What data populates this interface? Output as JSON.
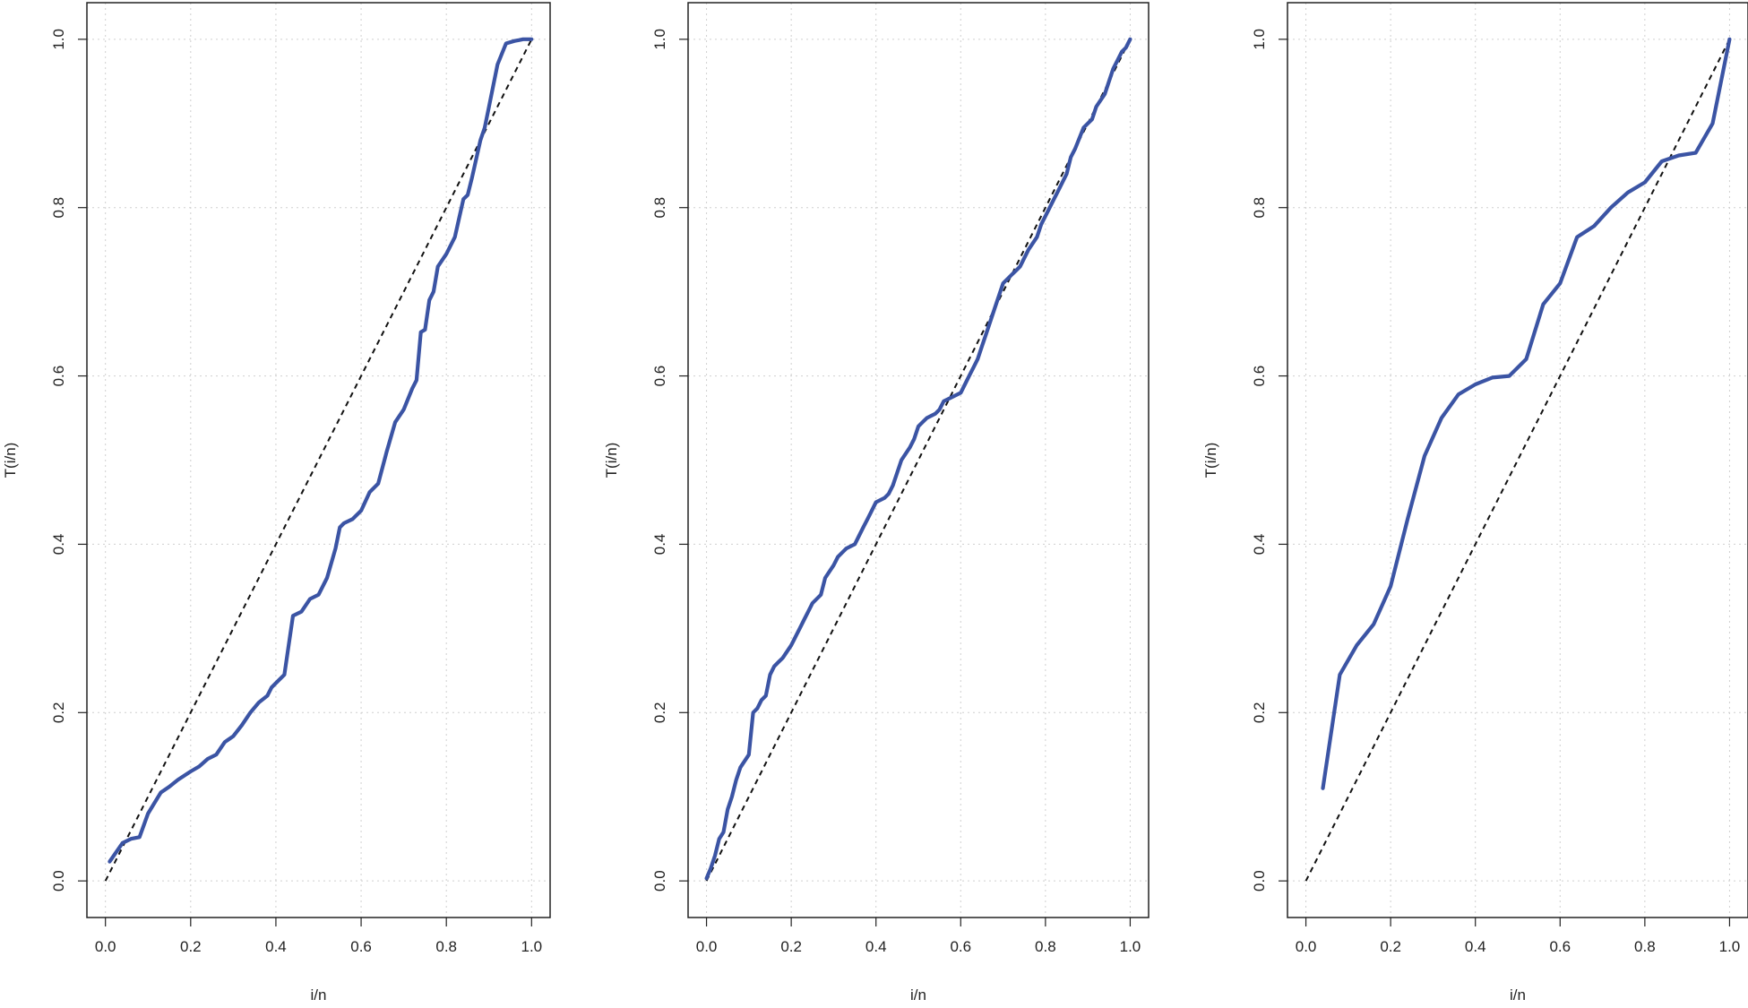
{
  "colors": {
    "series": "#3b54a4",
    "reference": "#111111"
  },
  "chart_data": [
    {
      "type": "line",
      "xlabel": "i/n",
      "ylabel": "T(i/n)",
      "xlim": [
        0,
        1
      ],
      "ylim": [
        0,
        1
      ],
      "grid": true,
      "xticks": [
        0.0,
        0.2,
        0.4,
        0.6,
        0.8,
        1.0
      ],
      "yticks": [
        0.0,
        0.2,
        0.4,
        0.6,
        0.8,
        1.0
      ],
      "xtick_labels": [
        "0.0",
        "0.2",
        "0.4",
        "0.6",
        "0.8",
        "1.0"
      ],
      "ytick_labels": [
        "0.0",
        "0.2",
        "0.4",
        "0.6",
        "0.8",
        "1.0"
      ],
      "reference_line": [
        [
          0,
          0
        ],
        [
          1,
          1
        ]
      ],
      "series": [
        {
          "x": [
            0.01,
            0.04,
            0.06,
            0.08,
            0.1,
            0.13,
            0.15,
            0.17,
            0.2,
            0.22,
            0.24,
            0.26,
            0.28,
            0.3,
            0.32,
            0.34,
            0.36,
            0.38,
            0.39,
            0.4,
            0.42,
            0.44,
            0.46,
            0.48,
            0.5,
            0.52,
            0.54,
            0.55,
            0.56,
            0.58,
            0.6,
            0.62,
            0.64,
            0.66,
            0.68,
            0.7,
            0.72,
            0.73,
            0.74,
            0.75,
            0.76,
            0.77,
            0.78,
            0.8,
            0.82,
            0.84,
            0.85,
            0.86,
            0.88,
            0.89,
            0.9,
            0.92,
            0.94,
            0.96,
            0.97,
            0.98,
            1.0
          ],
          "y": [
            0.023,
            0.045,
            0.05,
            0.052,
            0.08,
            0.105,
            0.112,
            0.12,
            0.13,
            0.136,
            0.145,
            0.15,
            0.165,
            0.172,
            0.185,
            0.2,
            0.212,
            0.22,
            0.23,
            0.235,
            0.245,
            0.315,
            0.32,
            0.335,
            0.34,
            0.36,
            0.395,
            0.42,
            0.425,
            0.43,
            0.44,
            0.462,
            0.472,
            0.51,
            0.545,
            0.56,
            0.585,
            0.595,
            0.652,
            0.655,
            0.69,
            0.7,
            0.73,
            0.745,
            0.765,
            0.81,
            0.815,
            0.835,
            0.88,
            0.895,
            0.92,
            0.97,
            0.995,
            0.998,
            0.999,
            1.0,
            1.0
          ]
        }
      ]
    },
    {
      "type": "line",
      "xlabel": "i/n",
      "ylabel": "T(i/n)",
      "xlim": [
        0,
        1
      ],
      "ylim": [
        0,
        1
      ],
      "grid": true,
      "xticks": [
        0.0,
        0.2,
        0.4,
        0.6,
        0.8,
        1.0
      ],
      "yticks": [
        0.0,
        0.2,
        0.4,
        0.6,
        0.8,
        1.0
      ],
      "xtick_labels": [
        "0.0",
        "0.2",
        "0.4",
        "0.6",
        "0.8",
        "1.0"
      ],
      "ytick_labels": [
        "0.0",
        "0.2",
        "0.4",
        "0.6",
        "0.8",
        "1.0"
      ],
      "reference_line": [
        [
          0,
          0
        ],
        [
          1,
          1
        ]
      ],
      "series": [
        {
          "x": [
            0.0,
            0.01,
            0.02,
            0.03,
            0.04,
            0.05,
            0.06,
            0.07,
            0.08,
            0.1,
            0.11,
            0.12,
            0.13,
            0.14,
            0.15,
            0.16,
            0.17,
            0.18,
            0.2,
            0.22,
            0.23,
            0.24,
            0.25,
            0.27,
            0.28,
            0.3,
            0.31,
            0.32,
            0.33,
            0.35,
            0.36,
            0.37,
            0.38,
            0.39,
            0.4,
            0.42,
            0.43,
            0.44,
            0.46,
            0.48,
            0.49,
            0.5,
            0.51,
            0.52,
            0.54,
            0.55,
            0.56,
            0.58,
            0.6,
            0.61,
            0.62,
            0.63,
            0.64,
            0.65,
            0.66,
            0.68,
            0.7,
            0.72,
            0.73,
            0.74,
            0.76,
            0.78,
            0.79,
            0.8,
            0.81,
            0.82,
            0.83,
            0.85,
            0.86,
            0.87,
            0.89,
            0.9,
            0.91,
            0.92,
            0.94,
            0.95,
            0.96,
            0.97,
            0.98,
            0.99,
            1.0
          ],
          "y": [
            0.003,
            0.015,
            0.03,
            0.05,
            0.058,
            0.085,
            0.1,
            0.12,
            0.135,
            0.15,
            0.2,
            0.205,
            0.215,
            0.22,
            0.245,
            0.255,
            0.26,
            0.265,
            0.28,
            0.3,
            0.31,
            0.32,
            0.33,
            0.34,
            0.36,
            0.375,
            0.385,
            0.39,
            0.395,
            0.4,
            0.41,
            0.42,
            0.43,
            0.44,
            0.45,
            0.455,
            0.46,
            0.47,
            0.5,
            0.515,
            0.525,
            0.54,
            0.545,
            0.55,
            0.555,
            0.56,
            0.57,
            0.575,
            0.58,
            0.59,
            0.6,
            0.61,
            0.62,
            0.635,
            0.65,
            0.68,
            0.71,
            0.72,
            0.725,
            0.73,
            0.75,
            0.765,
            0.78,
            0.79,
            0.8,
            0.81,
            0.82,
            0.84,
            0.86,
            0.87,
            0.895,
            0.9,
            0.905,
            0.92,
            0.935,
            0.95,
            0.965,
            0.975,
            0.985,
            0.99,
            1.0
          ]
        }
      ]
    },
    {
      "type": "line",
      "xlabel": "i/n",
      "ylabel": "T(i/n)",
      "xlim": [
        0,
        1
      ],
      "ylim": [
        0,
        1
      ],
      "grid": true,
      "xticks": [
        0.0,
        0.2,
        0.4,
        0.6,
        0.8,
        1.0
      ],
      "yticks": [
        0.0,
        0.2,
        0.4,
        0.6,
        0.8,
        1.0
      ],
      "xtick_labels": [
        "0.0",
        "0.2",
        "0.4",
        "0.6",
        "0.8",
        "1.0"
      ],
      "ytick_labels": [
        "0.0",
        "0.2",
        "0.4",
        "0.6",
        "0.8",
        "1.0"
      ],
      "reference_line": [
        [
          0,
          0
        ],
        [
          1,
          1
        ]
      ],
      "series": [
        {
          "x": [
            0.04,
            0.08,
            0.12,
            0.16,
            0.2,
            0.24,
            0.28,
            0.32,
            0.36,
            0.4,
            0.44,
            0.48,
            0.52,
            0.56,
            0.6,
            0.64,
            0.68,
            0.72,
            0.76,
            0.8,
            0.84,
            0.88,
            0.92,
            0.96,
            1.0
          ],
          "y": [
            0.11,
            0.245,
            0.28,
            0.305,
            0.35,
            0.43,
            0.505,
            0.55,
            0.578,
            0.59,
            0.598,
            0.6,
            0.62,
            0.685,
            0.71,
            0.765,
            0.778,
            0.8,
            0.818,
            0.83,
            0.855,
            0.862,
            0.865,
            0.9,
            1.0
          ]
        }
      ]
    }
  ]
}
